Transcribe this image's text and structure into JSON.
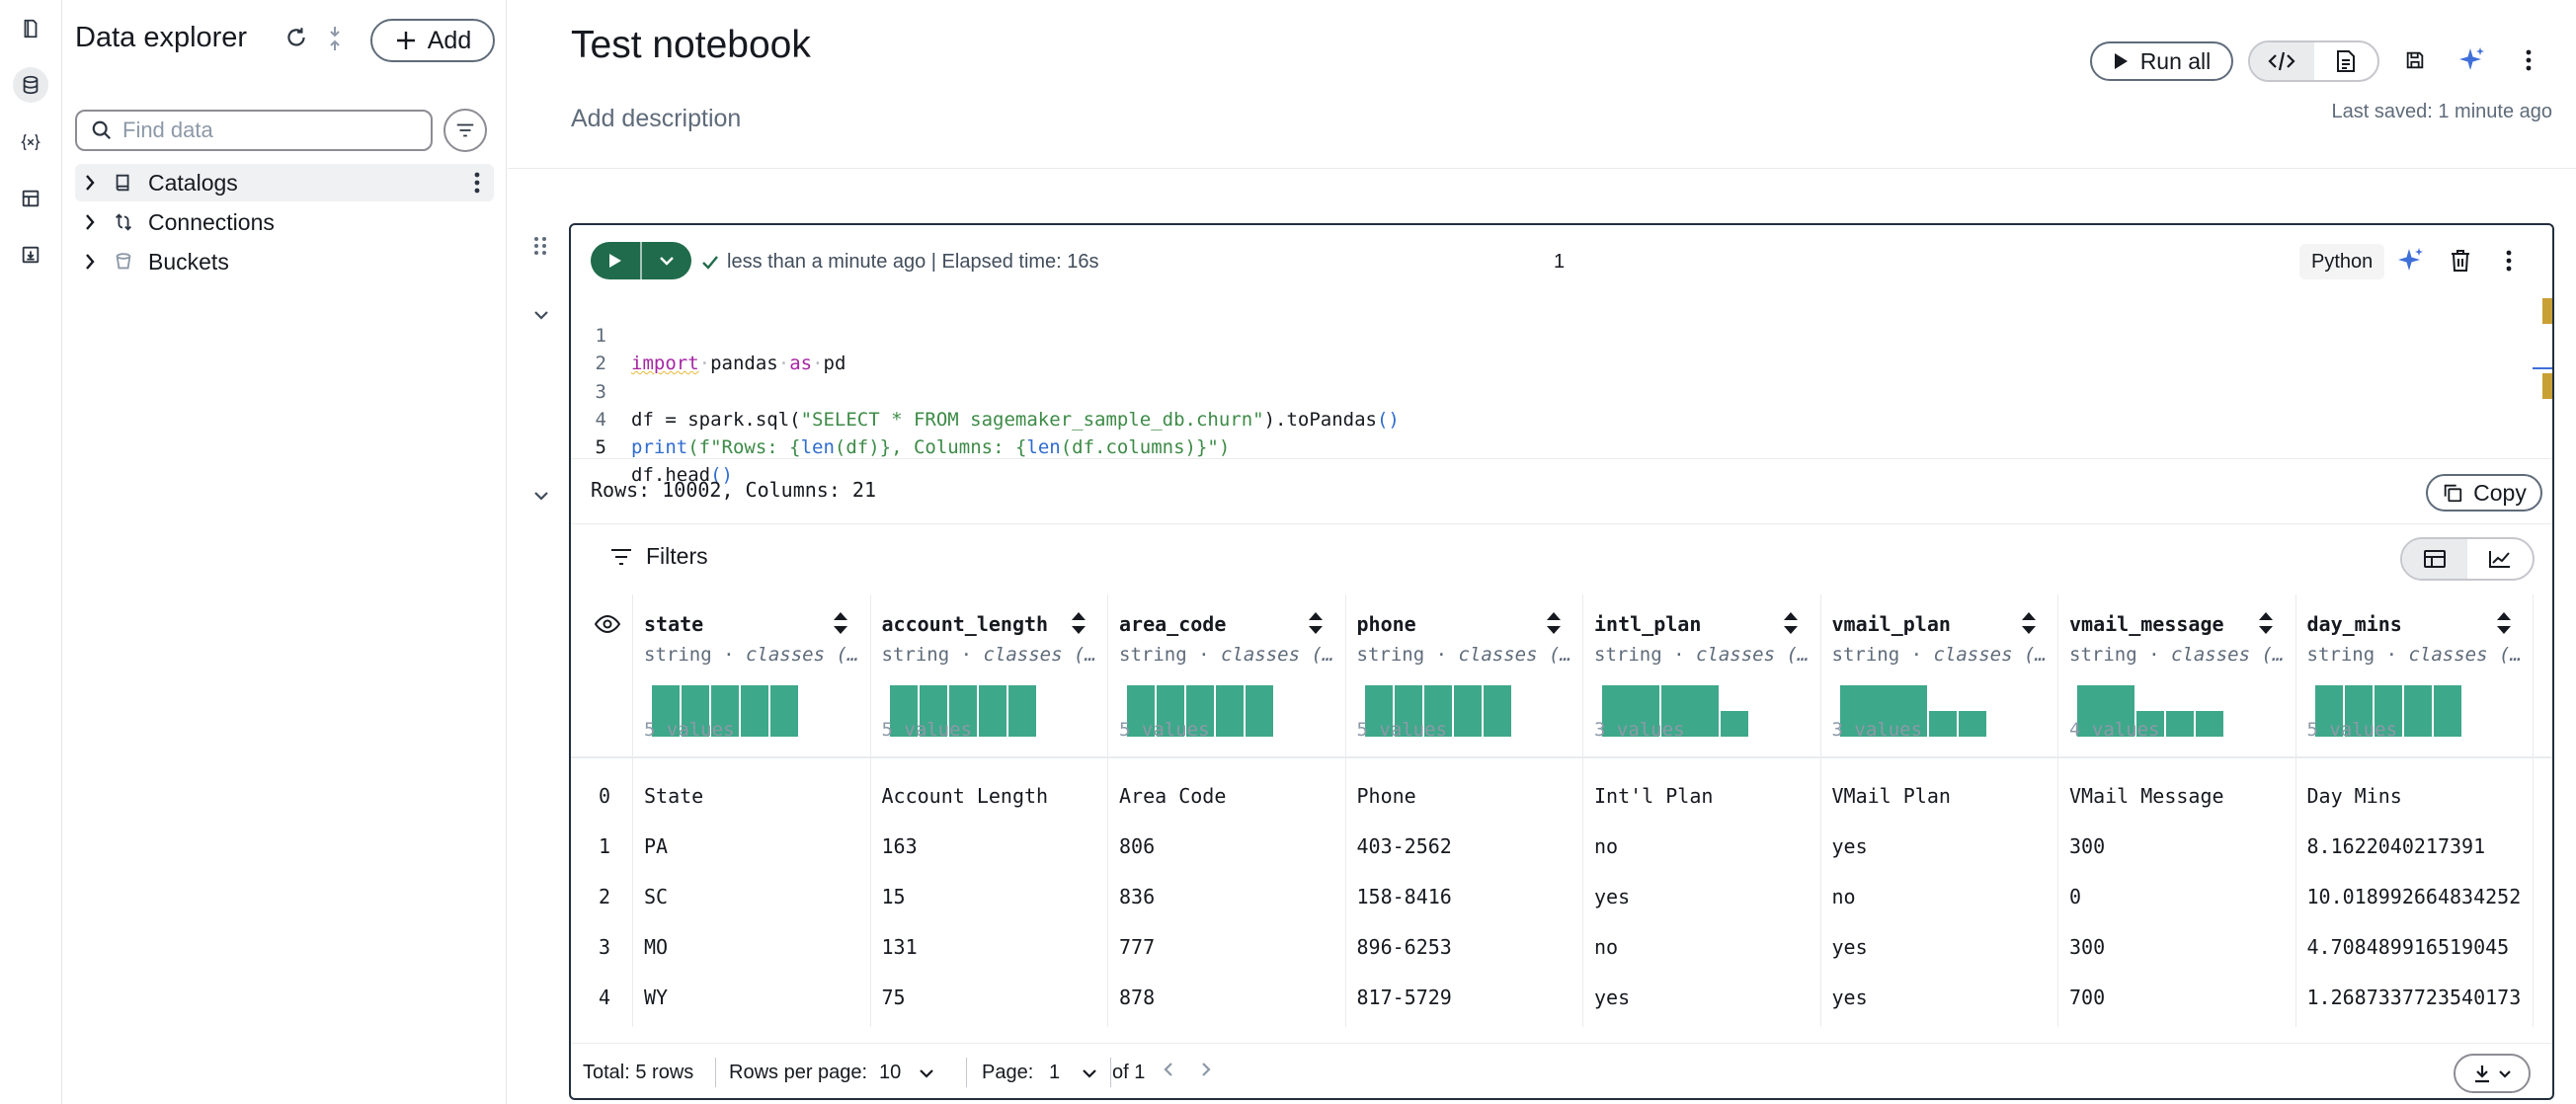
{
  "rail": {
    "icons": [
      "notebook-icon",
      "database-icon",
      "variables-icon",
      "table-icon",
      "import-icon"
    ],
    "active": "database-icon"
  },
  "explorer": {
    "title": "Data explorer",
    "add_label": "Add",
    "search_placeholder": "Find data",
    "tree": [
      {
        "label": "Catalogs",
        "icon": "book-icon"
      },
      {
        "label": "Connections",
        "icon": "connection-icon"
      },
      {
        "label": "Buckets",
        "icon": "bucket-icon"
      }
    ]
  },
  "header": {
    "title": "Test notebook",
    "description_placeholder": "Add description",
    "run_all_label": "Run all",
    "last_saved": "Last saved: 1 minute ago"
  },
  "cell": {
    "status": "less than a minute ago | Elapsed time: 16s",
    "execution_count": "1",
    "language": "Python",
    "code_lines": [
      {
        "n": "1"
      },
      {
        "n": "2"
      },
      {
        "n": "3"
      },
      {
        "n": "4"
      },
      {
        "n": "5"
      }
    ],
    "code": {
      "l1_import": "import",
      "l1_mid": "pandas",
      "l1_as": "as",
      "l1_end": "pd",
      "l3_a": "df = spark.sql(",
      "l3_str": "\"SELECT * FROM sagemaker_sample_db.churn\"",
      "l3_b": ").toPandas",
      "l3_c": "()",
      "l4_print": "print",
      "l4_a": "(f\"Rows: {",
      "l4_len1": "len",
      "l4_b": "(df)}, Columns: {",
      "l4_len2": "len",
      "l4_c": "(df.columns)}\")",
      "l5": "df.head",
      "l5_p": "()"
    },
    "output": {
      "text": "Rows: 10002, Columns: 21",
      "copy_label": "Copy",
      "filters_label": "Filters",
      "columns": [
        {
          "name": "state",
          "type_prefix": "string · ",
          "type_suffix": "classes (…",
          "values_label": "5 values",
          "bars": [
            1,
            1,
            1,
            1,
            1
          ]
        },
        {
          "name": "account_length",
          "type_prefix": "string · ",
          "type_suffix": "classes (…",
          "values_label": "5 values",
          "bars": [
            1,
            1,
            1,
            1,
            1
          ]
        },
        {
          "name": "area_code",
          "type_prefix": "string · ",
          "type_suffix": "classes (…",
          "values_label": "5 values",
          "bars": [
            1,
            1,
            1,
            1,
            1
          ]
        },
        {
          "name": "phone",
          "type_prefix": "string · ",
          "type_suffix": "classes (…",
          "values_label": "5 values",
          "bars": [
            1,
            1,
            1,
            1,
            1
          ]
        },
        {
          "name": "intl_plan",
          "type_prefix": "string · ",
          "type_suffix": "classes (…",
          "values_label": "3 values",
          "bars": [
            2,
            2,
            1
          ]
        },
        {
          "name": "vmail_plan",
          "type_prefix": "string · ",
          "type_suffix": "classes (…",
          "values_label": "3 values",
          "bars": [
            3,
            1,
            1
          ]
        },
        {
          "name": "vmail_message",
          "type_prefix": "string · ",
          "type_suffix": "classes (…",
          "values_label": "4 values",
          "bars": [
            2,
            1,
            1,
            1
          ]
        },
        {
          "name": "day_mins",
          "type_prefix": "string · ",
          "type_suffix": "classes (…",
          "values_label": "5 values",
          "bars": [
            1,
            1,
            1,
            1,
            1
          ]
        }
      ],
      "rows": [
        {
          "idx": "0",
          "cells": [
            "State",
            "Account Length",
            "Area Code",
            "Phone",
            "Int'l Plan",
            "VMail Plan",
            "VMail Message",
            "Day Mins"
          ]
        },
        {
          "idx": "1",
          "cells": [
            "PA",
            "163",
            "806",
            "403-2562",
            "no",
            "yes",
            "300",
            "8.1622040217391"
          ]
        },
        {
          "idx": "2",
          "cells": [
            "SC",
            "15",
            "836",
            "158-8416",
            "yes",
            "no",
            "0",
            "10.018992664834252"
          ]
        },
        {
          "idx": "3",
          "cells": [
            "MO",
            "131",
            "777",
            "896-6253",
            "no",
            "yes",
            "300",
            "4.708489916519045"
          ]
        },
        {
          "idx": "4",
          "cells": [
            "WY",
            "75",
            "878",
            "817-5729",
            "yes",
            "yes",
            "700",
            "1.2687337723540173"
          ]
        }
      ],
      "footer": {
        "total": "Total: 5 rows",
        "rows_per_page_label": "Rows per page:",
        "rows_per_page_value": "10",
        "page_label": "Page:",
        "page_value": "1",
        "of_label": "of 1"
      }
    }
  },
  "colors": {
    "accent_green": "#1f6b4b",
    "bar_green": "#3ea88a",
    "border_dark": "#232f3e",
    "sparkle_blue": "#3f6fd8"
  }
}
